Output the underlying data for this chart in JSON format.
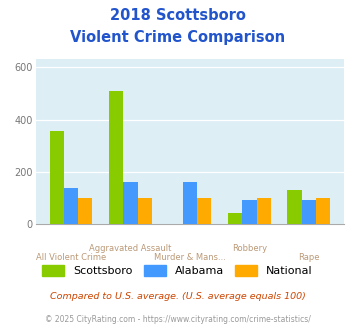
{
  "title_line1": "2018 Scottsboro",
  "title_line2": "Violent Crime Comparison",
  "categories": [
    "All Violent Crime",
    "Aggravated Assault",
    "Murder & Mans...",
    "Robbery",
    "Rape"
  ],
  "scottsboro": [
    355,
    510,
    0,
    42,
    130
  ],
  "alabama": [
    140,
    162,
    162,
    95,
    95
  ],
  "national": [
    100,
    100,
    100,
    100,
    100
  ],
  "colors": {
    "scottsboro": "#88cc00",
    "alabama": "#4499ff",
    "national": "#ffaa00"
  },
  "ylim": [
    0,
    630
  ],
  "yticks": [
    0,
    200,
    400,
    600
  ],
  "background_color": "#ddeef5",
  "title_color": "#2255cc",
  "label_color": "#bb9977",
  "footnote1": "Compared to U.S. average. (U.S. average equals 100)",
  "footnote2": "© 2025 CityRating.com - https://www.cityrating.com/crime-statistics/",
  "footnote1_color": "#cc4400",
  "footnote2_color": "#999999",
  "url_color": "#4488cc"
}
